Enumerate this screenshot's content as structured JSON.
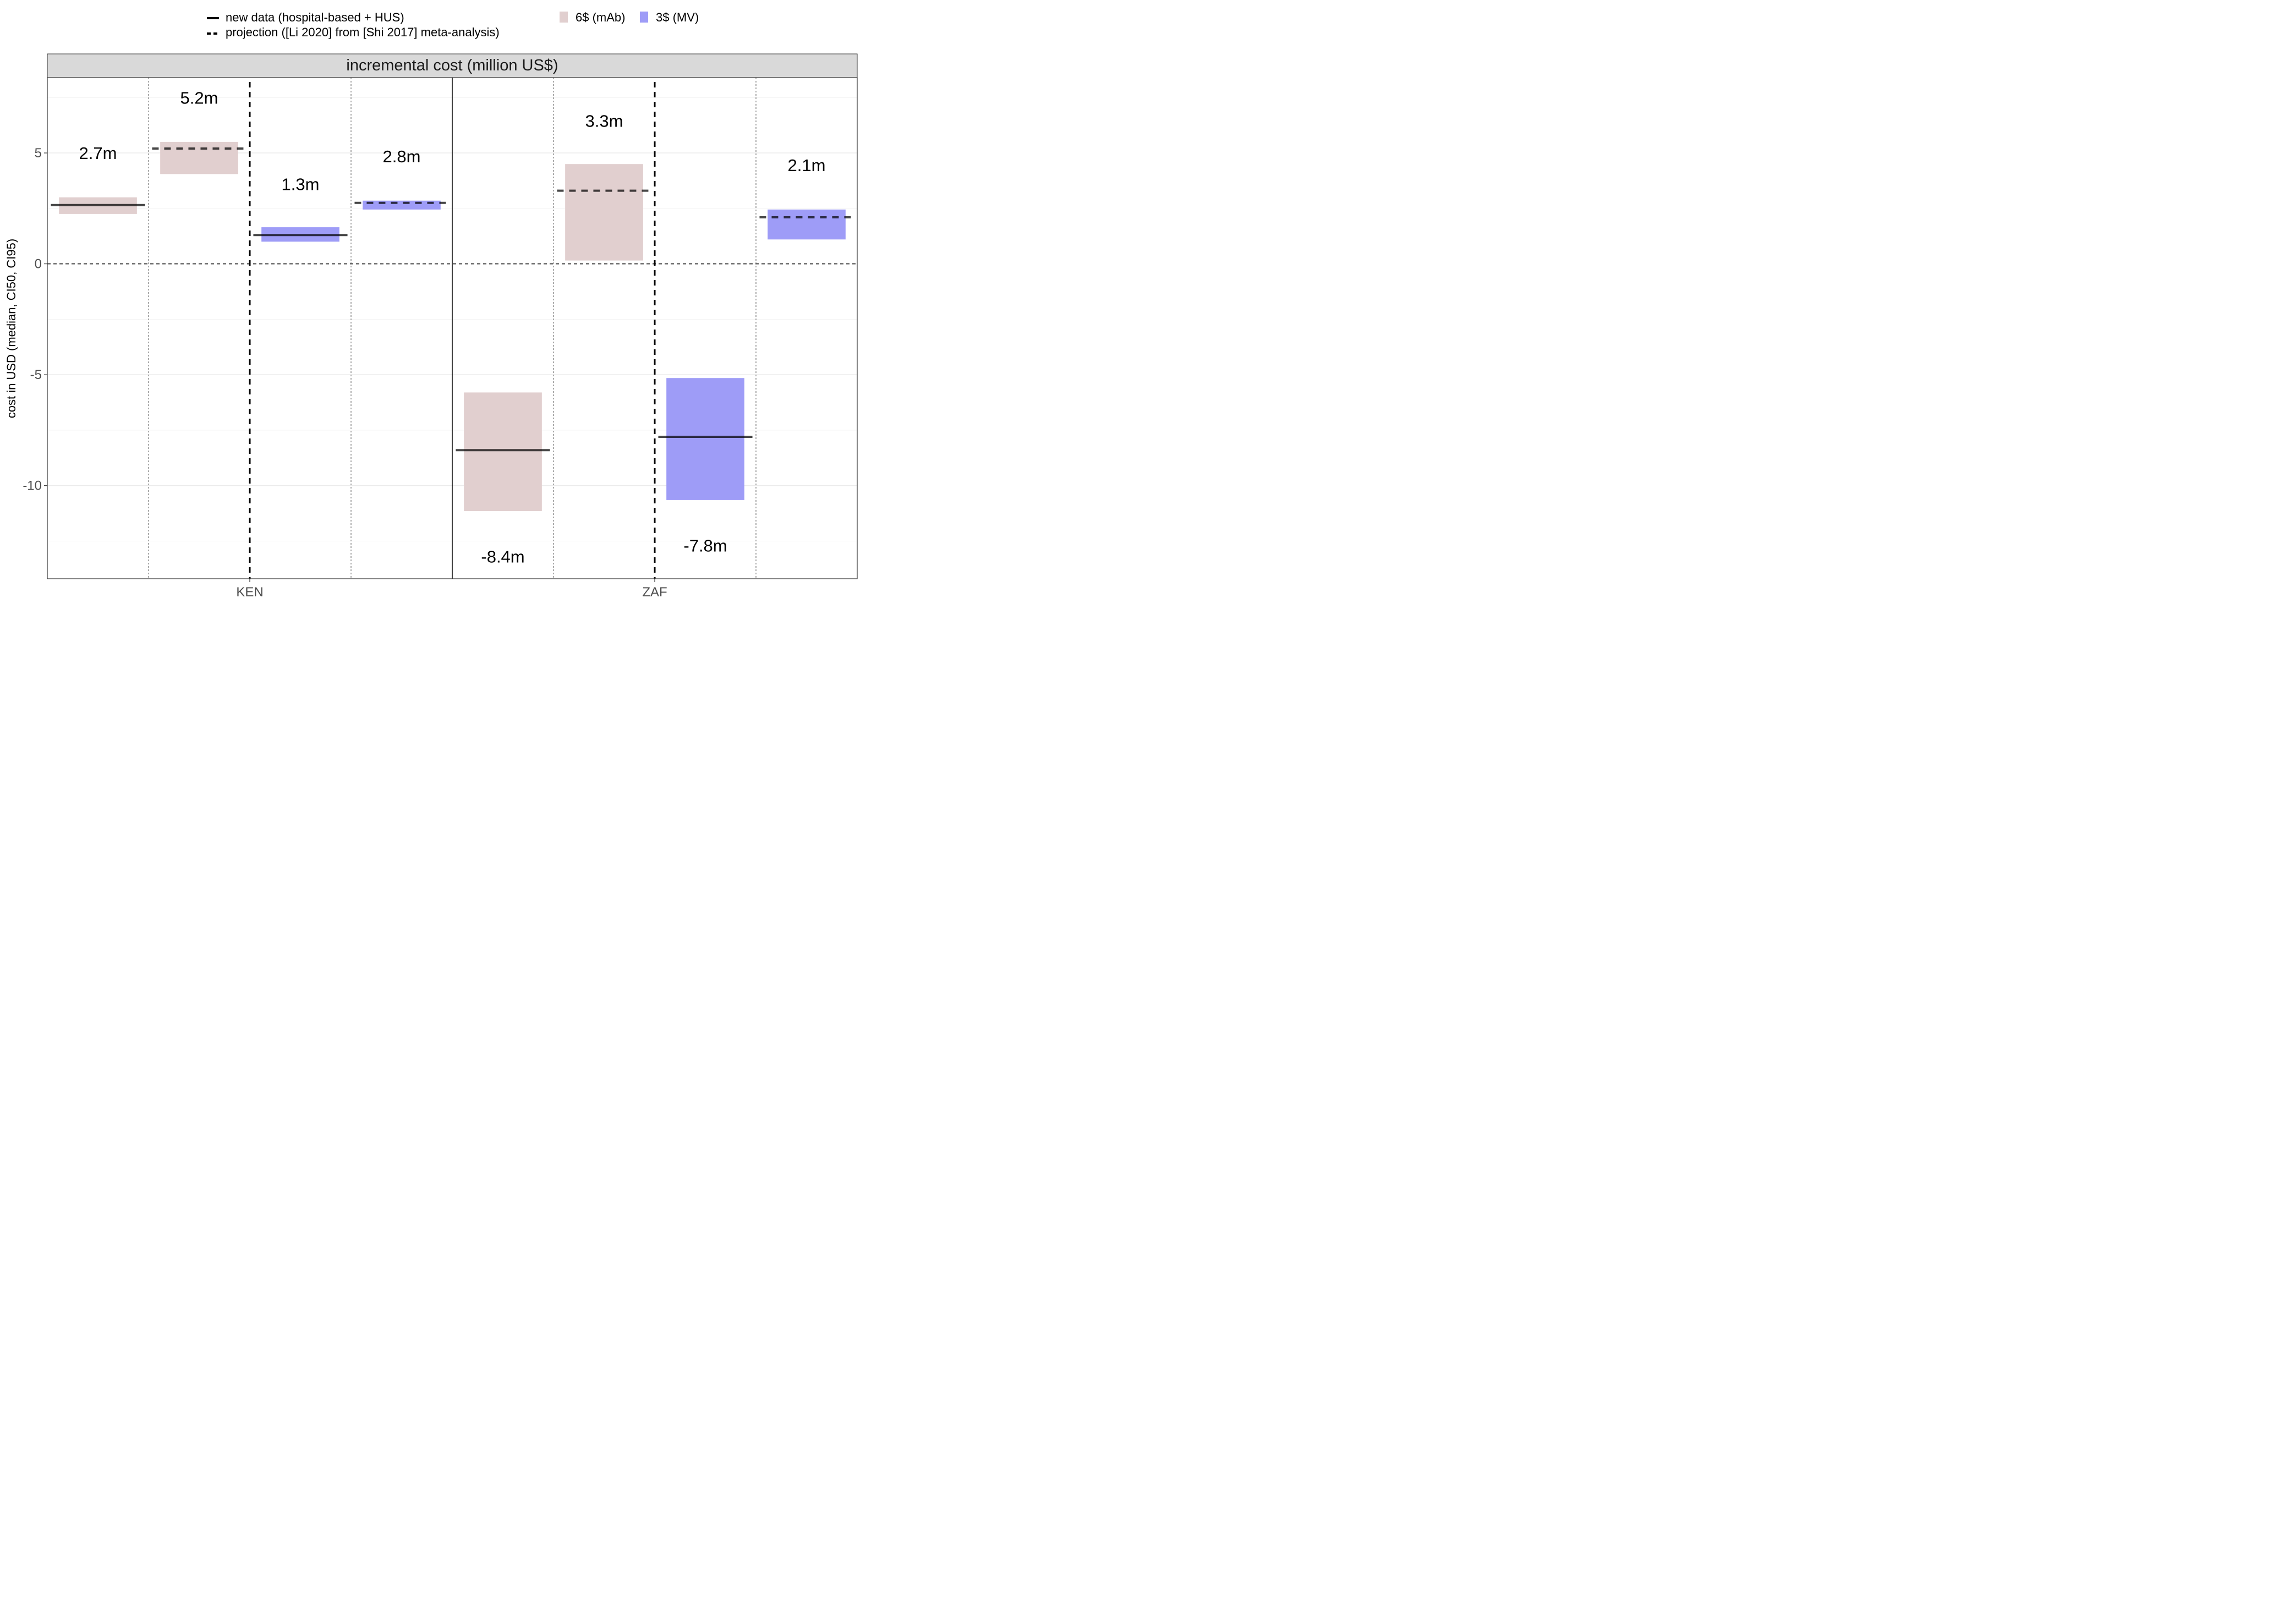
{
  "chart_data": {
    "type": "bar",
    "title": "",
    "panel_title": "incremental cost (million US$)",
    "xlabel": "",
    "ylabel": "cost in USD (median, CI50, CI95)",
    "ylim": [
      -14.2,
      8.4
    ],
    "y_ticks": [
      5,
      0,
      -5,
      -10
    ],
    "y_tick_labels": [
      "5",
      "0",
      "-5",
      "-10"
    ],
    "grid": true,
    "legend_position": "top",
    "categories": [
      "KEN",
      "ZAF"
    ],
    "linetype_legend": [
      {
        "key": "solid",
        "label": "new data (hospital-based + HUS)"
      },
      {
        "key": "dashed",
        "label": "projection ([Li 2020] from [Shi 2017] meta-analysis)"
      }
    ],
    "fill_legend": [
      {
        "key": "mAb",
        "label": "6$ (mAb)",
        "color": "#e1cfcf"
      },
      {
        "key": "MV",
        "label": "3$ (MV)",
        "color": "#9e9cf7"
      }
    ],
    "series": [
      {
        "country": "KEN",
        "product": "mAb",
        "source": "solid",
        "median": 2.65,
        "ci_low": 2.25,
        "ci_high": 3.0,
        "label": "2.7m",
        "label_y": 5.0
      },
      {
        "country": "KEN",
        "product": "mAb",
        "source": "dashed",
        "median": 5.2,
        "ci_low": 4.05,
        "ci_high": 5.5,
        "label": "5.2m",
        "label_y": 7.5
      },
      {
        "country": "KEN",
        "product": "MV",
        "source": "solid",
        "median": 1.3,
        "ci_low": 1.0,
        "ci_high": 1.65,
        "label": "1.3m",
        "label_y": 3.6
      },
      {
        "country": "KEN",
        "product": "MV",
        "source": "dashed",
        "median": 2.75,
        "ci_low": 2.45,
        "ci_high": 2.85,
        "label": "2.8m",
        "label_y": 4.85
      },
      {
        "country": "ZAF",
        "product": "mAb",
        "source": "solid",
        "median": -8.4,
        "ci_low": -11.15,
        "ci_high": -5.8,
        "label": "-8.4m",
        "label_y": -13.2
      },
      {
        "country": "ZAF",
        "product": "mAb",
        "source": "dashed",
        "median": 3.3,
        "ci_low": 0.15,
        "ci_high": 4.5,
        "label": "3.3m",
        "label_y": 6.45
      },
      {
        "country": "ZAF",
        "product": "MV",
        "source": "solid",
        "median": -7.8,
        "ci_low": -10.65,
        "ci_high": -5.15,
        "label": "-7.8m",
        "label_y": -12.7
      },
      {
        "country": "ZAF",
        "product": "MV",
        "source": "dashed",
        "median": 2.1,
        "ci_low": 1.1,
        "ci_high": 2.45,
        "label": "2.1m",
        "label_y": 4.45
      }
    ]
  }
}
